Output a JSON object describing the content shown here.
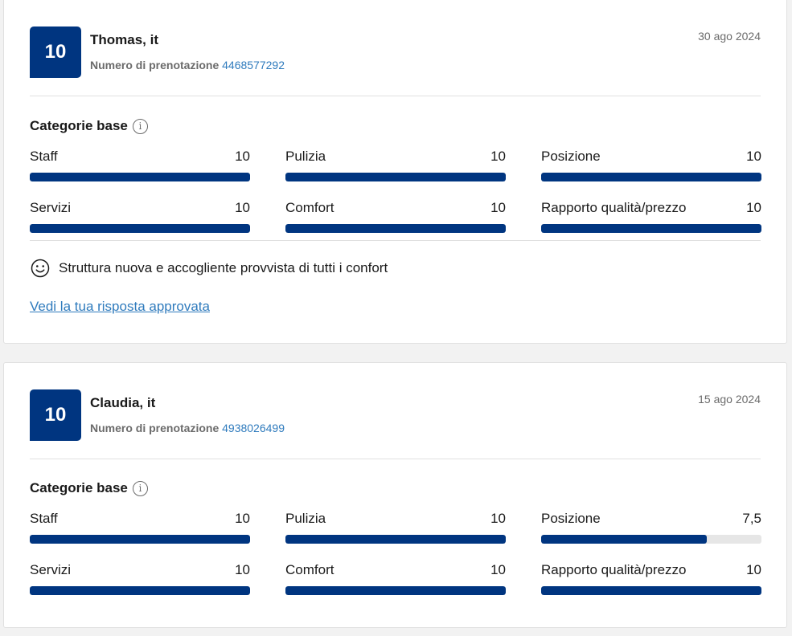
{
  "reviews": [
    {
      "score": "10",
      "name": "Thomas, it",
      "booking_label": "Numero di prenotazione",
      "booking_number": "4468577292",
      "date": "30 ago 2024",
      "categories_title": "Categorie base",
      "categories": [
        {
          "label": "Staff",
          "score": "10",
          "fraction": 1.0
        },
        {
          "label": "Pulizia",
          "score": "10",
          "fraction": 1.0
        },
        {
          "label": "Posizione",
          "score": "10",
          "fraction": 1.0
        },
        {
          "label": "Servizi",
          "score": "10",
          "fraction": 1.0
        },
        {
          "label": "Comfort",
          "score": "10",
          "fraction": 1.0
        },
        {
          "label": "Rapporto qualità/prezzo",
          "score": "10",
          "fraction": 1.0
        }
      ],
      "comment": "Struttura nuova e accogliente provvista di tutti i confort",
      "comment_icon": "smile-icon",
      "reply_link": "Vedi la tua risposta approvata"
    },
    {
      "score": "10",
      "name": "Claudia, it",
      "booking_label": "Numero di prenotazione",
      "booking_number": "4938026499",
      "date": "15 ago 2024",
      "categories_title": "Categorie base",
      "categories": [
        {
          "label": "Staff",
          "score": "10",
          "fraction": 1.0
        },
        {
          "label": "Pulizia",
          "score": "10",
          "fraction": 1.0
        },
        {
          "label": "Posizione",
          "score": "7,5",
          "fraction": 0.75
        },
        {
          "label": "Servizi",
          "score": "10",
          "fraction": 1.0
        },
        {
          "label": "Comfort",
          "score": "10",
          "fraction": 1.0
        },
        {
          "label": "Rapporto qualità/prezzo",
          "score": "10",
          "fraction": 1.0
        }
      ]
    }
  ],
  "colors": {
    "brand": "#003580",
    "link": "#2f7bbd",
    "muted": "#6b6b6b"
  },
  "icons": {
    "info": "info-icon",
    "smile": "smile-icon"
  }
}
